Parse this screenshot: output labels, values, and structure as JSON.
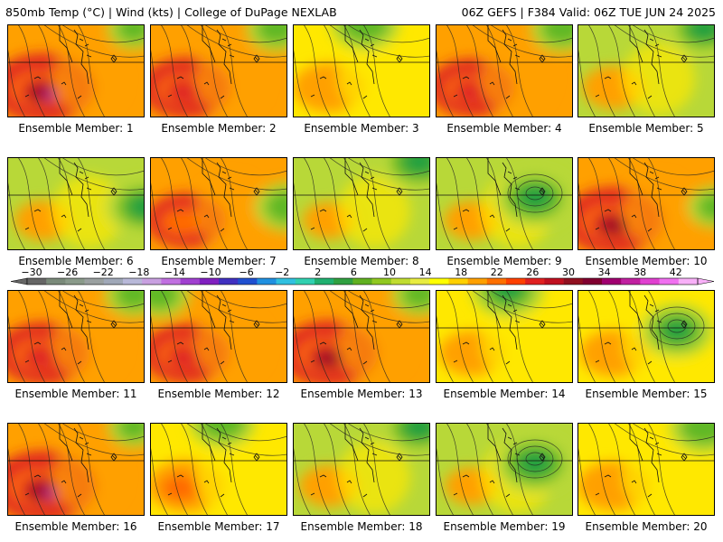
{
  "header": {
    "left": "850mb Temp (°C) | Wind (kts) | College of DuPage NEXLAB",
    "right": "06Z GEFS | F384 Valid: 06Z TUE JUN 24 2025"
  },
  "label_prefix": "Ensemble Member: ",
  "members": [
    {
      "n": "1",
      "warmth": 0.85,
      "cold": "ne"
    },
    {
      "n": "2",
      "warmth": 0.72,
      "cold": "ne"
    },
    {
      "n": "3",
      "warmth": 0.55,
      "cold": "n"
    },
    {
      "n": "4",
      "warmth": 0.68,
      "cold": "ne"
    },
    {
      "n": "5",
      "warmth": 0.45,
      "cold": "ne"
    },
    {
      "n": "6",
      "warmth": 0.4,
      "cold": "e"
    },
    {
      "n": "7",
      "warmth": 0.62,
      "cold": "e"
    },
    {
      "n": "8",
      "warmth": 0.35,
      "cold": "ne"
    },
    {
      "n": "9",
      "warmth": 0.38,
      "cold": "c"
    },
    {
      "n": "10",
      "warmth": 0.82,
      "cold": "e"
    },
    {
      "n": "11",
      "warmth": 0.75,
      "cold": "ne"
    },
    {
      "n": "12",
      "warmth": 0.7,
      "cold": "nw"
    },
    {
      "n": "13",
      "warmth": 0.8,
      "cold": "ne"
    },
    {
      "n": "14",
      "warmth": 0.48,
      "cold": "n"
    },
    {
      "n": "15",
      "warmth": 0.5,
      "cold": "c"
    },
    {
      "n": "16",
      "warmth": 0.88,
      "cold": "ne"
    },
    {
      "n": "17",
      "warmth": 0.6,
      "cold": "n"
    },
    {
      "n": "18",
      "warmth": 0.42,
      "cold": "ne"
    },
    {
      "n": "19",
      "warmth": 0.36,
      "cold": "c"
    },
    {
      "n": "20",
      "warmth": 0.55,
      "cold": "ne"
    }
  ],
  "colorbar": {
    "ticks": [
      "−30",
      "−26",
      "−22",
      "−18",
      "−14",
      "−10",
      "−6",
      "−2",
      "2",
      "6",
      "10",
      "14",
      "18",
      "22",
      "26",
      "30",
      "34",
      "38",
      "42"
    ],
    "colors": [
      "#666666",
      "#7a8a7a",
      "#8a9a8a",
      "#9aa0a0",
      "#a0a8b8",
      "#b8b8d8",
      "#c8a0e0",
      "#c070e0",
      "#a040d0",
      "#8020c0",
      "#4030c0",
      "#2050d0",
      "#2090e0",
      "#30c0e0",
      "#30d0b0",
      "#20b070",
      "#30a040",
      "#60b020",
      "#90c820",
      "#c0dc30",
      "#e8ec40",
      "#ffff00",
      "#ffd000",
      "#ffa000",
      "#ff7000",
      "#ff4000",
      "#e02020",
      "#c01020",
      "#901020",
      "#800030",
      "#a00070",
      "#c020a0",
      "#e040d0",
      "#f070f0",
      "#f8b0f8"
    ]
  },
  "palette": {
    "cold_green": "#20a040",
    "green": "#60b828",
    "yellow_green": "#b8d838",
    "yellow": "#ffe800",
    "orange": "#ffa000",
    "orange_red": "#ff6a00",
    "red": "#e02820",
    "dark_red": "#a01020",
    "magenta": "#c030a0"
  }
}
